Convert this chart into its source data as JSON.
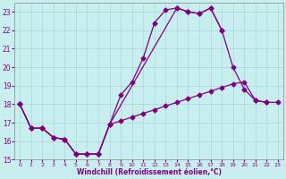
{
  "background_color": "#c8eef0",
  "line_color": "#800080",
  "grid_color": "#a8d8d8",
  "xlabel": "Windchill (Refroidissement éolien,°C)",
  "xlabel_color": "#800080",
  "xtick_color": "#800080",
  "ytick_color": "#800080",
  "xlim": [
    -0.5,
    23.5
  ],
  "ylim": [
    15,
    23.5
  ],
  "yticks": [
    15,
    16,
    17,
    18,
    19,
    20,
    21,
    22,
    23
  ],
  "xticks": [
    0,
    1,
    2,
    3,
    4,
    5,
    6,
    7,
    8,
    9,
    10,
    11,
    12,
    13,
    14,
    15,
    16,
    17,
    18,
    19,
    20,
    21,
    22,
    23
  ],
  "line1_x": [
    0,
    1,
    2,
    3,
    4,
    5,
    6,
    7,
    8,
    9,
    10,
    11,
    12,
    13,
    14,
    15,
    16,
    17,
    18
  ],
  "line1_y": [
    18.0,
    16.7,
    16.7,
    16.2,
    16.1,
    15.3,
    15.3,
    15.3,
    16.9,
    18.5,
    19.2,
    20.5,
    22.4,
    23.1,
    23.2,
    23.0,
    22.9,
    23.2,
    22.0
  ],
  "line2_x": [
    0,
    1,
    2,
    3,
    4,
    5,
    6,
    7,
    8,
    14,
    15,
    16,
    17,
    18,
    19,
    20,
    21,
    22
  ],
  "line2_y": [
    18.0,
    16.7,
    16.7,
    16.2,
    16.1,
    15.3,
    15.3,
    15.3,
    16.9,
    23.2,
    23.0,
    22.9,
    23.2,
    22.0,
    20.0,
    18.8,
    18.2,
    18.1
  ],
  "line3_x": [
    0,
    1,
    2,
    3,
    4,
    5,
    6,
    7,
    8,
    9,
    10,
    11,
    12,
    13,
    14,
    15,
    16,
    17,
    18,
    19,
    20,
    21,
    22,
    23
  ],
  "line3_y": [
    18.0,
    16.7,
    16.7,
    16.2,
    16.1,
    15.3,
    15.3,
    15.3,
    16.9,
    17.1,
    17.3,
    17.5,
    17.7,
    17.9,
    18.1,
    18.3,
    18.5,
    18.7,
    18.9,
    19.1,
    19.2,
    18.2,
    18.1,
    18.1
  ]
}
